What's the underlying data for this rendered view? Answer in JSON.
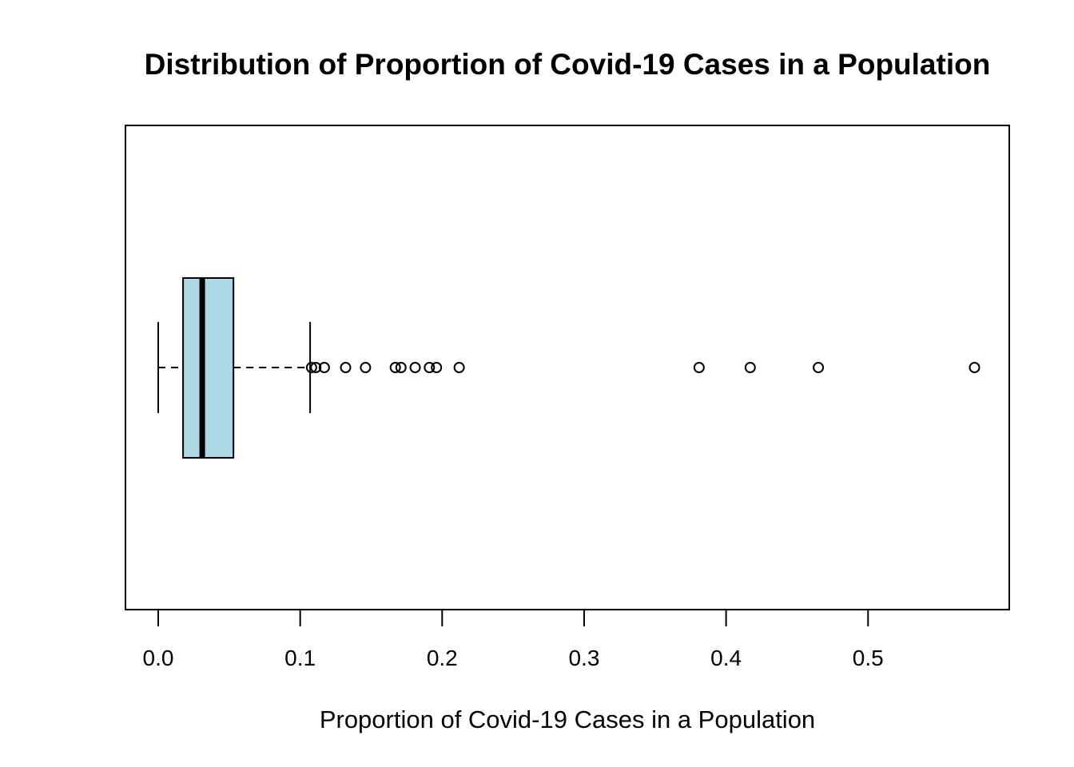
{
  "chart_data": {
    "type": "boxplot",
    "orientation": "horizontal",
    "title": "Distribution of Proportion of Covid-19 Cases in a Population",
    "xlabel": "Proportion of Covid-19 Cases in a Population",
    "ylabel": "",
    "xlim": [
      0.0,
      0.5764
    ],
    "x_ticks": [
      0.0,
      0.1,
      0.2,
      0.3,
      0.4,
      0.5
    ],
    "x_tick_labels": [
      "0.0",
      "0.1",
      "0.2",
      "0.3",
      "0.4",
      "0.5"
    ],
    "grid": false,
    "box_color": "#ADD8E6",
    "stats": {
      "whisker_low": 0.0,
      "q1": 0.0175,
      "median": 0.031,
      "q3": 0.053,
      "whisker_high": 0.107
    },
    "outliers": [
      0.108,
      0.111,
      0.117,
      0.132,
      0.146,
      0.167,
      0.171,
      0.181,
      0.191,
      0.196,
      0.212,
      0.381,
      0.417,
      0.465,
      0.575
    ]
  }
}
